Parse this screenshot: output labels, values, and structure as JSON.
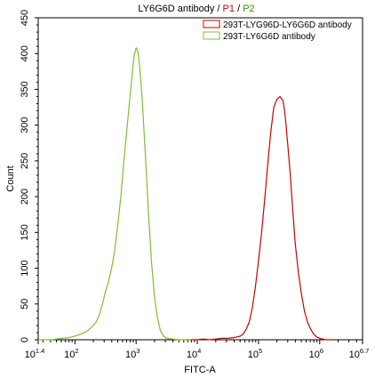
{
  "chart_data": {
    "type": "line",
    "title": {
      "parts": [
        {
          "text": "LY6G6D antibody",
          "color": "#000000"
        },
        {
          "text": " / ",
          "color": "#000000"
        },
        {
          "text": "P1",
          "color": "#cc0000"
        },
        {
          "text": " / ",
          "color": "#000000"
        },
        {
          "text": "P2",
          "color": "#339900"
        }
      ]
    },
    "xlabel": "FITC-A",
    "ylabel": "Count",
    "xscale": "log",
    "xlim": [
      1.4,
      6.7
    ],
    "ylim": [
      0,
      450
    ],
    "x_ticks": [
      {
        "base": "10",
        "exp": "1.4",
        "value": 1.4
      },
      {
        "base": "10",
        "exp": "2",
        "value": 2
      },
      {
        "base": "10",
        "exp": "3",
        "value": 3
      },
      {
        "base": "10",
        "exp": "4",
        "value": 4
      },
      {
        "base": "10",
        "exp": "5",
        "value": 5
      },
      {
        "base": "10",
        "exp": "6",
        "value": 6
      },
      {
        "base": "10",
        "exp": "6.7",
        "value": 6.7
      }
    ],
    "y_ticks": [
      0,
      50,
      100,
      150,
      200,
      250,
      300,
      350,
      400,
      450
    ],
    "y_tick_labels": [
      "0",
      "50",
      "100",
      "150",
      "200",
      "250",
      "300",
      "350",
      "400",
      "450"
    ],
    "grid": false,
    "legend_position": "top-right",
    "series": [
      {
        "name": "293T-LYG96D-LY6G6D antibody",
        "color": "#cc0000",
        "points": [
          [
            3.8,
            0
          ],
          [
            4.0,
            0
          ],
          [
            4.1,
            1
          ],
          [
            4.2,
            0
          ],
          [
            4.3,
            1
          ],
          [
            4.4,
            2
          ],
          [
            4.5,
            2
          ],
          [
            4.6,
            3
          ],
          [
            4.7,
            5
          ],
          [
            4.75,
            8
          ],
          [
            4.8,
            15
          ],
          [
            4.85,
            25
          ],
          [
            4.9,
            45
          ],
          [
            4.95,
            75
          ],
          [
            5.0,
            110
          ],
          [
            5.05,
            150
          ],
          [
            5.1,
            195
          ],
          [
            5.15,
            245
          ],
          [
            5.2,
            290
          ],
          [
            5.25,
            325
          ],
          [
            5.3,
            336
          ],
          [
            5.35,
            340
          ],
          [
            5.4,
            334
          ],
          [
            5.43,
            318
          ],
          [
            5.45,
            300
          ],
          [
            5.48,
            270
          ],
          [
            5.52,
            230
          ],
          [
            5.56,
            180
          ],
          [
            5.6,
            135
          ],
          [
            5.65,
            95
          ],
          [
            5.7,
            65
          ],
          [
            5.75,
            40
          ],
          [
            5.8,
            25
          ],
          [
            5.85,
            15
          ],
          [
            5.9,
            8
          ],
          [
            5.95,
            4
          ],
          [
            6.0,
            2
          ],
          [
            6.05,
            1
          ],
          [
            6.1,
            0
          ],
          [
            6.2,
            0
          ]
        ]
      },
      {
        "name": "293T-LY6G6D antibody",
        "color": "#7fc030",
        "points": [
          [
            1.4,
            0
          ],
          [
            1.6,
            0
          ],
          [
            1.7,
            1
          ],
          [
            1.8,
            2
          ],
          [
            1.9,
            3
          ],
          [
            2.0,
            5
          ],
          [
            2.1,
            8
          ],
          [
            2.2,
            12
          ],
          [
            2.3,
            20
          ],
          [
            2.35,
            25
          ],
          [
            2.4,
            35
          ],
          [
            2.45,
            50
          ],
          [
            2.5,
            68
          ],
          [
            2.55,
            82
          ],
          [
            2.6,
            100
          ],
          [
            2.65,
            125
          ],
          [
            2.7,
            160
          ],
          [
            2.75,
            200
          ],
          [
            2.8,
            250
          ],
          [
            2.85,
            295
          ],
          [
            2.9,
            340
          ],
          [
            2.94,
            375
          ],
          [
            2.97,
            398
          ],
          [
            3.0,
            408
          ],
          [
            3.03,
            402
          ],
          [
            3.06,
            380
          ],
          [
            3.1,
            335
          ],
          [
            3.15,
            260
          ],
          [
            3.2,
            180
          ],
          [
            3.25,
            110
          ],
          [
            3.3,
            60
          ],
          [
            3.35,
            30
          ],
          [
            3.4,
            12
          ],
          [
            3.45,
            5
          ],
          [
            3.5,
            2
          ],
          [
            3.6,
            1
          ],
          [
            3.7,
            0
          ],
          [
            3.9,
            0
          ]
        ]
      }
    ]
  }
}
